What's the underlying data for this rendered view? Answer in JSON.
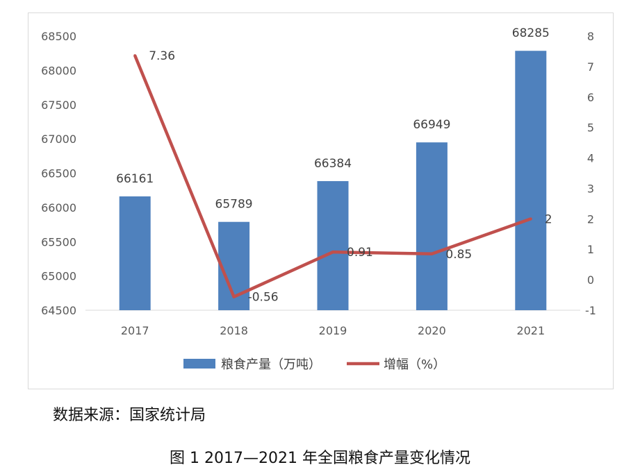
{
  "chart_data": {
    "type": "bar",
    "categories": [
      "2017",
      "2018",
      "2019",
      "2020",
      "2021"
    ],
    "series": [
      {
        "name": "粮食产量（万吨）",
        "type": "bar",
        "axis": "left",
        "values": [
          66161,
          65789,
          66384,
          66949,
          68285
        ],
        "labels": [
          "66161",
          "65789",
          "66384",
          "66949",
          "68285"
        ],
        "color": "#4f81bd"
      },
      {
        "name": "增幅（%）",
        "type": "line",
        "axis": "right",
        "values": [
          7.36,
          -0.56,
          0.91,
          0.85,
          2
        ],
        "labels": [
          "7.36",
          "-0.56",
          "0.91",
          "0.85",
          "2"
        ],
        "color": "#c0504d"
      }
    ],
    "y_left": {
      "min": 64500,
      "max": 68500,
      "step": 500,
      "ticks": [
        "64500",
        "65000",
        "65500",
        "66000",
        "66500",
        "67000",
        "67500",
        "68000",
        "68500"
      ]
    },
    "y_right": {
      "min": -1,
      "max": 8,
      "step": 1,
      "ticks": [
        "-1",
        "0",
        "1",
        "2",
        "3",
        "4",
        "5",
        "6",
        "7",
        "8"
      ]
    },
    "grid": false,
    "legend_position": "bottom"
  },
  "source_note": "数据来源：国家统计局",
  "caption": "图 1 2017—2021 年全国粮食产量变化情况"
}
